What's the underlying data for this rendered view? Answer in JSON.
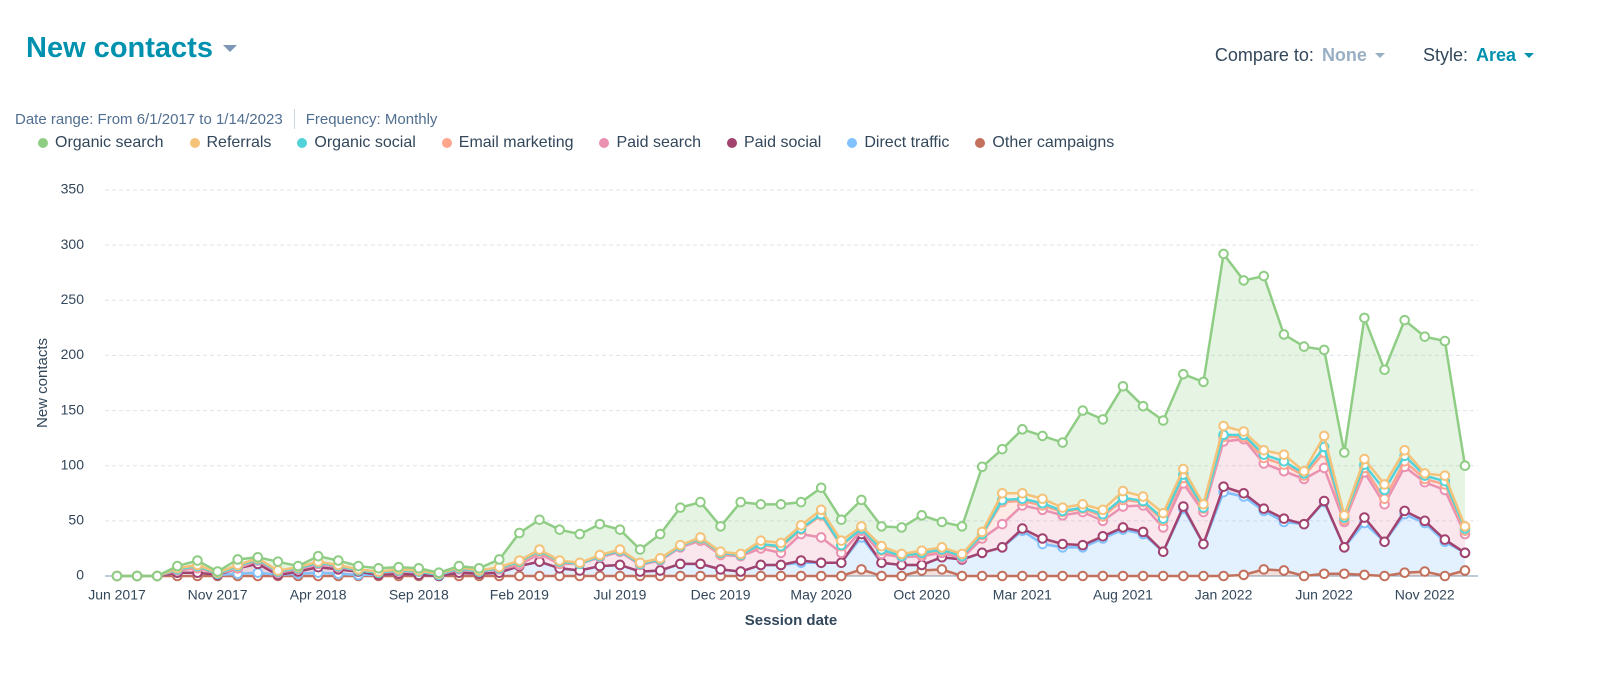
{
  "header": {
    "title": "New contacts",
    "compare_label": "Compare to:",
    "compare_value": "None",
    "style_label": "Style:",
    "style_value": "Area",
    "date_range": "Date range: From 6/1/2017 to 1/14/2023",
    "frequency": "Frequency: Monthly"
  },
  "chart_data": {
    "type": "area",
    "stacked": true,
    "grid": true,
    "y_label": "New contacts",
    "x_label": "Session date",
    "ylim": [
      0,
      350
    ],
    "yticks": [
      0,
      50,
      100,
      150,
      200,
      250,
      300,
      350
    ],
    "categories": [
      "Jun 2017",
      null,
      null,
      null,
      null,
      "Nov 2017",
      null,
      null,
      null,
      null,
      "Apr 2018",
      null,
      null,
      null,
      null,
      "Sep 2018",
      null,
      null,
      null,
      null,
      "Feb 2019",
      null,
      null,
      null,
      null,
      "Jul 2019",
      null,
      null,
      null,
      null,
      "Dec 2019",
      null,
      null,
      null,
      null,
      "May 2020",
      null,
      null,
      null,
      null,
      "Oct 2020",
      null,
      null,
      null,
      null,
      "Mar 2021",
      null,
      null,
      null,
      null,
      "Aug 2021",
      null,
      null,
      null,
      null,
      "Jan 2022",
      null,
      null,
      null,
      null,
      "Jun 2022",
      null,
      null,
      null,
      null,
      "Nov 2022",
      null,
      null
    ],
    "series": [
      {
        "name": "Organic search",
        "color": "#8fcd85",
        "values": [
          0,
          0,
          0,
          2,
          4,
          1,
          5,
          1,
          8,
          1,
          5,
          4,
          3,
          3,
          2,
          2,
          1,
          1,
          2,
          7,
          25,
          27,
          28,
          26,
          28,
          18,
          12,
          22,
          34,
          32,
          23,
          47,
          33,
          35,
          21,
          20,
          19,
          24,
          18,
          24,
          32,
          23,
          25,
          59,
          40,
          58,
          57,
          59,
          85,
          82,
          95,
          82,
          84,
          86,
          111,
          156,
          137,
          158,
          109,
          113,
          78,
          57,
          128,
          104,
          118,
          124,
          122,
          55
        ]
      },
      {
        "name": "Referrals",
        "color": "#f5c27a",
        "values": [
          0,
          0,
          0,
          1,
          1,
          1,
          1,
          1,
          1,
          1,
          1,
          1,
          1,
          1,
          1,
          1,
          1,
          1,
          1,
          1,
          1,
          1,
          1,
          1,
          1,
          1,
          1,
          1,
          1,
          1,
          1,
          1,
          3,
          3,
          3,
          4,
          4,
          2,
          3,
          2,
          2,
          2,
          2,
          2,
          6,
          5,
          4,
          3,
          3,
          4,
          6,
          4,
          5,
          5,
          3,
          8,
          3,
          4,
          6,
          2,
          10,
          2,
          5,
          5,
          5,
          2,
          5,
          2
        ]
      },
      {
        "name": "Organic social",
        "color": "#51d3d9",
        "values": [
          0,
          0,
          0,
          0,
          1,
          0,
          1,
          0,
          0,
          0,
          0,
          0,
          0,
          0,
          0,
          0,
          0,
          0,
          0,
          0,
          1,
          1,
          1,
          0,
          0,
          0,
          0,
          0,
          0,
          1,
          1,
          0,
          1,
          1,
          1,
          1,
          1,
          0,
          1,
          0,
          1,
          1,
          0,
          1,
          2,
          2,
          2,
          1,
          1,
          2,
          2,
          1,
          2,
          3,
          1,
          2,
          2,
          3,
          3,
          2,
          5,
          2,
          3,
          8,
          5,
          3,
          3,
          2
        ]
      },
      {
        "name": "Email marketing",
        "color": "#fea58e",
        "values": [
          0,
          0,
          0,
          1,
          1,
          0,
          1,
          1,
          1,
          1,
          1,
          1,
          0,
          0,
          1,
          0,
          0,
          1,
          0,
          1,
          2,
          2,
          1,
          0,
          1,
          1,
          1,
          1,
          1,
          1,
          1,
          1,
          3,
          5,
          4,
          20,
          6,
          2,
          3,
          1,
          2,
          2,
          2,
          3,
          20,
          4,
          4,
          3,
          3,
          4,
          6,
          3,
          6,
          5,
          3,
          4,
          2,
          5,
          6,
          3,
          14,
          2,
          4,
          5,
          5,
          3,
          5,
          3
        ]
      },
      {
        "name": "Paid search",
        "color": "#ea90b1",
        "values": [
          0,
          0,
          0,
          2,
          4,
          1,
          0,
          3,
          2,
          2,
          3,
          2,
          1,
          2,
          2,
          3,
          1,
          3,
          2,
          3,
          1,
          7,
          4,
          6,
          8,
          12,
          6,
          9,
          15,
          21,
          13,
          14,
          15,
          11,
          24,
          23,
          9,
          3,
          8,
          7,
          8,
          4,
          1,
          13,
          21,
          21,
          26,
          26,
          30,
          14,
          19,
          24,
          22,
          21,
          29,
          41,
          49,
          41,
          43,
          41,
          30,
          23,
          41,
          34,
          40,
          35,
          45,
          17
        ]
      },
      {
        "name": "Paid social",
        "color": "#a2426e",
        "values": [
          0,
          0,
          0,
          0,
          0,
          0,
          5,
          8,
          0,
          2,
          5,
          4,
          3,
          0,
          0,
          0,
          0,
          0,
          0,
          0,
          0,
          0,
          0,
          0,
          0,
          0,
          0,
          0,
          0,
          0,
          0,
          0,
          0,
          0,
          2,
          0,
          0,
          3,
          0,
          0,
          0,
          0,
          0,
          0,
          0,
          2,
          5,
          3,
          2,
          2,
          2,
          2,
          0,
          2,
          0,
          5,
          3,
          2,
          3,
          0,
          1,
          0,
          5,
          0,
          3,
          2,
          2,
          0
        ]
      },
      {
        "name": "Direct traffic",
        "color": "#81c1fd",
        "values": [
          0,
          0,
          0,
          3,
          3,
          1,
          2,
          3,
          1,
          2,
          3,
          2,
          1,
          1,
          2,
          1,
          0,
          3,
          2,
          3,
          9,
          13,
          7,
          5,
          9,
          10,
          4,
          5,
          11,
          11,
          6,
          4,
          10,
          10,
          12,
          12,
          12,
          29,
          12,
          10,
          5,
          11,
          15,
          21,
          26,
          41,
          29,
          26,
          26,
          34,
          42,
          38,
          22,
          61,
          29,
          76,
          71,
          53,
          44,
          47,
          65,
          24,
          47,
          31,
          53,
          44,
          31,
          16
        ]
      },
      {
        "name": "Other campaigns",
        "color": "#c3705c",
        "values": [
          0,
          0,
          0,
          0,
          0,
          0,
          0,
          0,
          0,
          0,
          0,
          0,
          0,
          0,
          0,
          0,
          0,
          0,
          0,
          0,
          0,
          0,
          0,
          0,
          0,
          0,
          0,
          0,
          0,
          0,
          0,
          0,
          0,
          0,
          0,
          0,
          0,
          6,
          0,
          0,
          5,
          6,
          0,
          0,
          0,
          0,
          0,
          0,
          0,
          0,
          0,
          0,
          0,
          0,
          0,
          0,
          1,
          6,
          5,
          0,
          2,
          2,
          1,
          0,
          3,
          4,
          0,
          5
        ]
      }
    ]
  }
}
